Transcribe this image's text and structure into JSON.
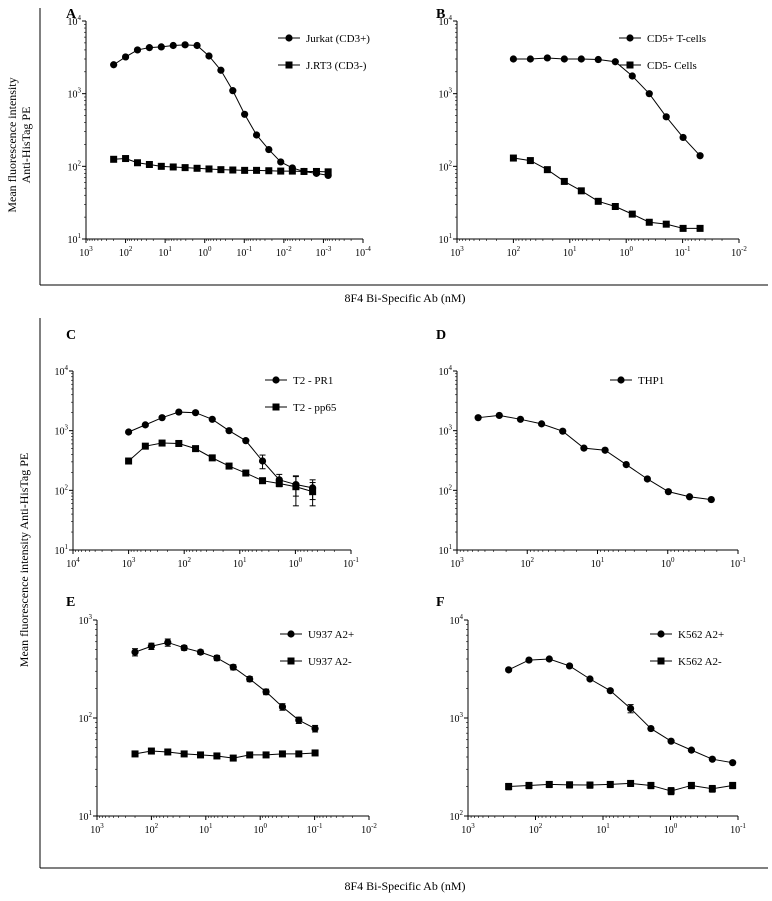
{
  "figure": {
    "top_ylabel_line1": "Mean fluorescence intensity",
    "top_ylabel_line2": "Anti-HisTag PE",
    "top_xlabel": "8F4 Bi-Specific Ab (nM)",
    "bottom_ylabel": "Mean fluorescence intensity Anti-HisTag PE",
    "bottom_xlabel": "8F4 Bi-Specific Ab (nM)"
  },
  "chart_data": [
    {
      "panel": "A",
      "type": "line",
      "xlim_exp": [
        3,
        -4
      ],
      "ylim_exp": [
        1,
        4
      ],
      "x_ticks": [
        {
          "base": "10",
          "exp": "3",
          "e": 3
        },
        {
          "base": "10",
          "exp": "2",
          "e": 2
        },
        {
          "base": "10",
          "exp": "1",
          "e": 1
        },
        {
          "base": "10",
          "exp": "0",
          "e": 0
        },
        {
          "base": "10",
          "exp": "-1",
          "e": -1
        },
        {
          "base": "10",
          "exp": "-2",
          "e": -2
        },
        {
          "base": "10",
          "exp": "-3",
          "e": -3
        },
        {
          "base": "10",
          "exp": "-4",
          "e": -4
        }
      ],
      "y_ticks": [
        {
          "base": "10",
          "exp": "1",
          "e": 1
        },
        {
          "base": "10",
          "exp": "2",
          "e": 2
        },
        {
          "base": "10",
          "exp": "3",
          "e": 3
        },
        {
          "base": "10",
          "exp": "4",
          "e": 4
        }
      ],
      "series": [
        {
          "name": "Jurkat (CD3+)",
          "marker": "circle",
          "x": [
            200,
            100,
            50,
            25,
            12.5,
            6.25,
            3.13,
            1.56,
            0.78,
            0.39,
            0.195,
            0.098,
            0.049,
            0.024,
            0.012,
            0.0061,
            0.0031,
            0.0015,
            0.00076
          ],
          "y": [
            2500,
            3200,
            4000,
            4300,
            4400,
            4600,
            4700,
            4600,
            3300,
            2100,
            1100,
            520,
            270,
            170,
            115,
            95,
            85,
            80,
            75
          ]
        },
        {
          "name": "J.RT3 (CD3-)",
          "marker": "square",
          "x": [
            200,
            100,
            50,
            25,
            12.5,
            6.25,
            3.13,
            1.56,
            0.78,
            0.39,
            0.195,
            0.098,
            0.049,
            0.024,
            0.012,
            0.0061,
            0.0031,
            0.0015,
            0.00076
          ],
          "y": [
            125,
            128,
            112,
            106,
            100,
            98,
            96,
            94,
            92,
            90,
            89,
            88,
            88,
            87,
            86,
            86,
            85,
            85,
            84
          ]
        }
      ]
    },
    {
      "panel": "B",
      "type": "line",
      "xlim_exp": [
        3,
        -2
      ],
      "ylim_exp": [
        1,
        4
      ],
      "x_ticks": [
        {
          "base": "10",
          "exp": "3",
          "e": 3
        },
        {
          "base": "10",
          "exp": "2",
          "e": 2
        },
        {
          "base": "10",
          "exp": "1",
          "e": 1
        },
        {
          "base": "10",
          "exp": "0",
          "e": 0
        },
        {
          "base": "10",
          "exp": "-1",
          "e": -1
        },
        {
          "base": "10",
          "exp": "-2",
          "e": -2
        }
      ],
      "y_ticks": [
        {
          "base": "10",
          "exp": "1",
          "e": 1
        },
        {
          "base": "10",
          "exp": "2",
          "e": 2
        },
        {
          "base": "10",
          "exp": "3",
          "e": 3
        },
        {
          "base": "10",
          "exp": "4",
          "e": 4
        }
      ],
      "series": [
        {
          "name": "CD5+ T-cells",
          "marker": "circle",
          "x": [
            100,
            50,
            25,
            12.5,
            6.25,
            3.13,
            1.56,
            0.78,
            0.39,
            0.195,
            0.098,
            0.049
          ],
          "y": [
            3000,
            3000,
            3100,
            3000,
            3000,
            2950,
            2750,
            1750,
            1000,
            480,
            250,
            140
          ]
        },
        {
          "name": "CD5- Cells",
          "marker": "square",
          "x": [
            100,
            50,
            25,
            12.5,
            6.25,
            3.13,
            1.56,
            0.78,
            0.39,
            0.195,
            0.098,
            0.049
          ],
          "y": [
            130,
            120,
            90,
            62,
            46,
            33,
            28,
            22,
            17,
            16,
            14,
            14
          ]
        }
      ]
    },
    {
      "panel": "C",
      "type": "line",
      "xlim_exp": [
        4,
        -1
      ],
      "ylim_exp": [
        1,
        4
      ],
      "x_ticks": [
        {
          "base": "10",
          "exp": "4",
          "e": 4
        },
        {
          "base": "10",
          "exp": "3",
          "e": 3
        },
        {
          "base": "10",
          "exp": "2",
          "e": 2
        },
        {
          "base": "10",
          "exp": "1",
          "e": 1
        },
        {
          "base": "10",
          "exp": "0",
          "e": 0
        },
        {
          "base": "10",
          "exp": "-1",
          "e": -1
        }
      ],
      "y_ticks": [
        {
          "base": "10",
          "exp": "1",
          "e": 1
        },
        {
          "base": "10",
          "exp": "2",
          "e": 2
        },
        {
          "base": "10",
          "exp": "3",
          "e": 3
        },
        {
          "base": "10",
          "exp": "4",
          "e": 4
        }
      ],
      "series": [
        {
          "name": "T2 - PR1",
          "marker": "circle",
          "x": [
            1000,
            500,
            250,
            125,
            62.5,
            31.3,
            15.6,
            7.8,
            3.9,
            1.95,
            0.98,
            0.49
          ],
          "y": [
            950,
            1250,
            1650,
            2050,
            2000,
            1550,
            1000,
            680,
            310,
            150,
            125,
            110
          ],
          "err": [
            0,
            0,
            0,
            0,
            0,
            0,
            0,
            0,
            80,
            35,
            45,
            40
          ]
        },
        {
          "name": "T2 - pp65",
          "marker": "square",
          "x": [
            1000,
            500,
            250,
            125,
            62.5,
            31.3,
            15.6,
            7.8,
            3.9,
            1.95,
            0.98,
            0.49
          ],
          "y": [
            310,
            550,
            620,
            610,
            500,
            350,
            255,
            195,
            145,
            130,
            115,
            95
          ],
          "err": [
            0,
            0,
            0,
            0,
            0,
            0,
            0,
            0,
            0,
            0,
            60,
            40
          ]
        }
      ]
    },
    {
      "panel": "D",
      "type": "line",
      "xlim_exp": [
        3,
        -1
      ],
      "ylim_exp": [
        1,
        4
      ],
      "x_ticks": [
        {
          "base": "10",
          "exp": "3",
          "e": 3
        },
        {
          "base": "10",
          "exp": "2",
          "e": 2
        },
        {
          "base": "10",
          "exp": "1",
          "e": 1
        },
        {
          "base": "10",
          "exp": "0",
          "e": 0
        },
        {
          "base": "10",
          "exp": "-1",
          "e": -1
        }
      ],
      "y_ticks": [
        {
          "base": "10",
          "exp": "1",
          "e": 1
        },
        {
          "base": "10",
          "exp": "2",
          "e": 2
        },
        {
          "base": "10",
          "exp": "3",
          "e": 3
        },
        {
          "base": "10",
          "exp": "4",
          "e": 4
        }
      ],
      "series": [
        {
          "name": "THP1",
          "marker": "circle",
          "x": [
            500,
            250,
            125,
            62.5,
            31.3,
            15.6,
            7.8,
            3.9,
            1.95,
            0.98,
            0.49,
            0.24
          ],
          "y": [
            1650,
            1800,
            1550,
            1300,
            980,
            510,
            470,
            270,
            155,
            95,
            78,
            70
          ]
        }
      ]
    },
    {
      "panel": "E",
      "type": "line",
      "xlim_exp": [
        3,
        -2
      ],
      "ylim_exp": [
        1,
        3
      ],
      "x_ticks": [
        {
          "base": "10",
          "exp": "3",
          "e": 3
        },
        {
          "base": "10",
          "exp": "2",
          "e": 2
        },
        {
          "base": "10",
          "exp": "1",
          "e": 1
        },
        {
          "base": "10",
          "exp": "0",
          "e": 0
        },
        {
          "base": "10",
          "exp": "-1",
          "e": -1
        },
        {
          "base": "10",
          "exp": "-2",
          "e": -2
        }
      ],
      "y_ticks": [
        {
          "base": "10",
          "exp": "1",
          "e": 1
        },
        {
          "base": "10",
          "exp": "2",
          "e": 2
        },
        {
          "base": "10",
          "exp": "3",
          "e": 3
        }
      ],
      "series": [
        {
          "name": "U937 A2+",
          "marker": "circle",
          "x": [
            200,
            100,
            50,
            25,
            12.5,
            6.25,
            3.13,
            1.56,
            0.78,
            0.39,
            0.195,
            0.098
          ],
          "y": [
            470,
            540,
            590,
            520,
            470,
            410,
            330,
            250,
            185,
            130,
            95,
            78
          ],
          "err": [
            40,
            40,
            50,
            30,
            25,
            25,
            20,
            15,
            12,
            10,
            7,
            6
          ]
        },
        {
          "name": "U937 A2-",
          "marker": "square",
          "x": [
            200,
            100,
            50,
            25,
            12.5,
            6.25,
            3.13,
            1.56,
            0.78,
            0.39,
            0.195,
            0.098
          ],
          "y": [
            43,
            46,
            45,
            43,
            42,
            41,
            39,
            42,
            42,
            43,
            43,
            44
          ],
          "err": [
            0,
            0,
            0,
            0,
            0,
            0,
            2,
            0,
            0,
            0,
            0,
            0
          ]
        }
      ]
    },
    {
      "panel": "F",
      "type": "line",
      "xlim_exp": [
        3,
        -1
      ],
      "ylim_exp": [
        2,
        4
      ],
      "x_ticks": [
        {
          "base": "10",
          "exp": "3",
          "e": 3
        },
        {
          "base": "10",
          "exp": "2",
          "e": 2
        },
        {
          "base": "10",
          "exp": "1",
          "e": 1
        },
        {
          "base": "10",
          "exp": "0",
          "e": 0
        },
        {
          "base": "10",
          "exp": "-1",
          "e": -1
        }
      ],
      "y_ticks": [
        {
          "base": "10",
          "exp": "2",
          "e": 2
        },
        {
          "base": "10",
          "exp": "3",
          "e": 3
        },
        {
          "base": "10",
          "exp": "4",
          "e": 4
        }
      ],
      "series": [
        {
          "name": "K562 A2+",
          "marker": "circle",
          "x": [
            250,
            125,
            62.5,
            31.3,
            15.6,
            7.8,
            3.9,
            1.95,
            0.98,
            0.49,
            0.24,
            0.12
          ],
          "y": [
            3100,
            3900,
            4000,
            3400,
            2500,
            1900,
            1250,
            780,
            580,
            470,
            380,
            350
          ],
          "err": [
            0,
            0,
            0,
            0,
            0,
            0,
            120,
            0,
            0,
            0,
            0,
            0
          ]
        },
        {
          "name": "K562 A2-",
          "marker": "square",
          "x": [
            250,
            125,
            62.5,
            31.3,
            15.6,
            7.8,
            3.9,
            1.95,
            0.98,
            0.49,
            0.24,
            0.12
          ],
          "y": [
            200,
            205,
            210,
            208,
            207,
            210,
            215,
            205,
            180,
            205,
            190,
            205
          ],
          "err": [
            15,
            15,
            15,
            15,
            15,
            15,
            15,
            15,
            15,
            15,
            15,
            15
          ]
        }
      ]
    }
  ]
}
